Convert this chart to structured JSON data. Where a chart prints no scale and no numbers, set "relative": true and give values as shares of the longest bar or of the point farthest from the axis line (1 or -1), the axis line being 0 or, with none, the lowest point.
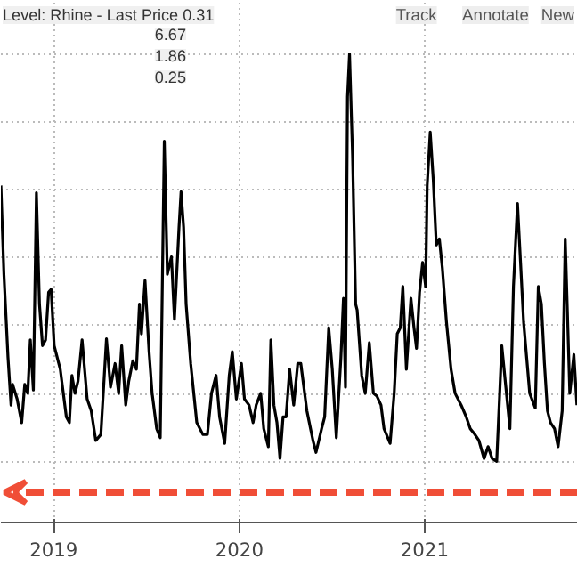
{
  "chart_data": {
    "type": "line",
    "relative": true,
    "grid": true,
    "marker": "none",
    "line_style": "solid",
    "annotations": [
      "Level: Rhine - Last Price 0.31",
      "6.67",
      "1.86",
      "0.25",
      "Track",
      "Annotate",
      "New"
    ],
    "xlim": [
      "2019-03-19",
      "2022-04-29"
    ],
    "xticks": [
      {
        "value": "2019-07-01",
        "label": "2019"
      },
      {
        "value": "2020-07-01",
        "label": "2020"
      },
      {
        "value": "2021-07-01",
        "label": "2021"
      }
    ],
    "series": [
      {
        "color": "#000000",
        "x": [
          "2019-03-19",
          "2019-03-25",
          "2019-04-02",
          "2019-04-08",
          "2019-04-11",
          "2019-04-20",
          "2019-04-29",
          "2019-05-05",
          "2019-05-11",
          "2019-05-16",
          "2019-05-22",
          "2019-05-28",
          "2019-06-03",
          "2019-06-09",
          "2019-06-15",
          "2019-06-21",
          "2019-06-26",
          "2019-07-02",
          "2019-07-14",
          "2019-07-26",
          "2019-08-01",
          "2019-08-06",
          "2019-08-12",
          "2019-08-18",
          "2019-08-26",
          "2019-09-05",
          "2019-09-13",
          "2019-09-22",
          "2019-10-02",
          "2019-10-13",
          "2019-10-21",
          "2019-10-30",
          "2019-11-06",
          "2019-11-12",
          "2019-11-20",
          "2019-11-26",
          "2019-12-04",
          "2019-12-11",
          "2019-12-17",
          "2019-12-21",
          "2019-12-28",
          "2020-01-05",
          "2020-01-11",
          "2020-01-20",
          "2020-01-27",
          "2020-02-04",
          "2020-02-10",
          "2020-02-18",
          "2020-02-24",
          "2020-03-04",
          "2020-03-08",
          "2020-03-13",
          "2020-03-18",
          "2020-03-27",
          "2020-04-08",
          "2020-04-20",
          "2020-04-29",
          "2020-05-07",
          "2020-05-16",
          "2020-05-23",
          "2020-06-02",
          "2020-06-11",
          "2020-06-17",
          "2020-06-25",
          "2020-07-05",
          "2020-07-11",
          "2020-07-20",
          "2020-07-28",
          "2020-08-03",
          "2020-08-12",
          "2020-08-18",
          "2020-08-27",
          "2020-09-01",
          "2020-09-07",
          "2020-09-13",
          "2020-09-19",
          "2020-09-25",
          "2020-10-01",
          "2020-10-08",
          "2020-10-16",
          "2020-10-24",
          "2020-10-30",
          "2020-11-11",
          "2020-11-23",
          "2020-11-29",
          "2020-12-10",
          "2020-12-16",
          "2020-12-24",
          "2020-12-31",
          "2021-01-08",
          "2021-01-17",
          "2021-01-22",
          "2021-01-26",
          "2021-01-30",
          "2021-02-03",
          "2021-02-09",
          "2021-02-15",
          "2021-02-18",
          "2021-02-27",
          "2021-03-06",
          "2021-03-14",
          "2021-03-22",
          "2021-03-29",
          "2021-04-06",
          "2021-04-12",
          "2021-04-24",
          "2021-05-02",
          "2021-05-08",
          "2021-05-14",
          "2021-05-19",
          "2021-05-26",
          "2021-06-04",
          "2021-06-10",
          "2021-06-15",
          "2021-06-21",
          "2021-06-27",
          "2021-07-03",
          "2021-07-06",
          "2021-07-12",
          "2021-07-18",
          "2021-07-24",
          "2021-07-30",
          "2021-08-05",
          "2021-08-13",
          "2021-08-22",
          "2021-08-30",
          "2021-09-11",
          "2021-09-21",
          "2021-09-29",
          "2021-10-08",
          "2021-10-16",
          "2021-10-26",
          "2021-11-03",
          "2021-11-11",
          "2021-11-20",
          "2021-11-30",
          "2021-12-08",
          "2021-12-16",
          "2021-12-23",
          "2021-12-31",
          "2022-01-06",
          "2022-01-12",
          "2022-01-24",
          "2022-02-04",
          "2022-02-10",
          "2022-02-16",
          "2022-02-22",
          "2022-02-28",
          "2022-03-06",
          "2022-03-14",
          "2022-03-21",
          "2022-03-29",
          "2022-04-04",
          "2022-04-13",
          "2022-04-21",
          "2022-04-27"
        ],
        "values": [
          0.677,
          0.459,
          0.255,
          0.138,
          0.189,
          0.153,
          0.095,
          0.189,
          0.167,
          0.298,
          0.175,
          0.659,
          0.386,
          0.284,
          0.298,
          0.415,
          0.422,
          0.284,
          0.226,
          0.109,
          0.095,
          0.211,
          0.167,
          0.197,
          0.298,
          0.153,
          0.124,
          0.051,
          0.066,
          0.301,
          0.182,
          0.24,
          0.167,
          0.284,
          0.138,
          0.197,
          0.247,
          0.226,
          0.386,
          0.313,
          0.444,
          0.269,
          0.167,
          0.08,
          0.058,
          0.786,
          0.459,
          0.502,
          0.349,
          0.575,
          0.662,
          0.575,
          0.386,
          0.24,
          0.095,
          0.066,
          0.066,
          0.167,
          0.211,
          0.109,
          0.044,
          0.211,
          0.269,
          0.153,
          0.24,
          0.153,
          0.138,
          0.095,
          0.138,
          0.167,
          0.08,
          0.036,
          0.298,
          0.138,
          0.095,
          0.007,
          0.109,
          0.109,
          0.226,
          0.138,
          0.24,
          0.24,
          0.124,
          0.051,
          0.022,
          0.08,
          0.109,
          0.328,
          0.226,
          0.058,
          0.255,
          0.4,
          0.182,
          0.895,
          1.0,
          0.75,
          0.386,
          0.371,
          0.211,
          0.167,
          0.291,
          0.167,
          0.16,
          0.138,
          0.08,
          0.044,
          0.167,
          0.313,
          0.328,
          0.429,
          0.226,
          0.4,
          0.328,
          0.277,
          0.415,
          0.488,
          0.429,
          0.677,
          0.808,
          0.691,
          0.531,
          0.546,
          0.473,
          0.342,
          0.226,
          0.167,
          0.138,
          0.109,
          0.08,
          0.066,
          0.051,
          0.007,
          0.036,
          0.007,
          0.0,
          0.284,
          0.182,
          0.08,
          0.429,
          0.633,
          0.488,
          0.342,
          0.167,
          0.131,
          0.429,
          0.386,
          0.24,
          0.124,
          0.095,
          0.08,
          0.036,
          0.124,
          0.546,
          0.167,
          0.262,
          0.138
        ]
      }
    ]
  }
}
